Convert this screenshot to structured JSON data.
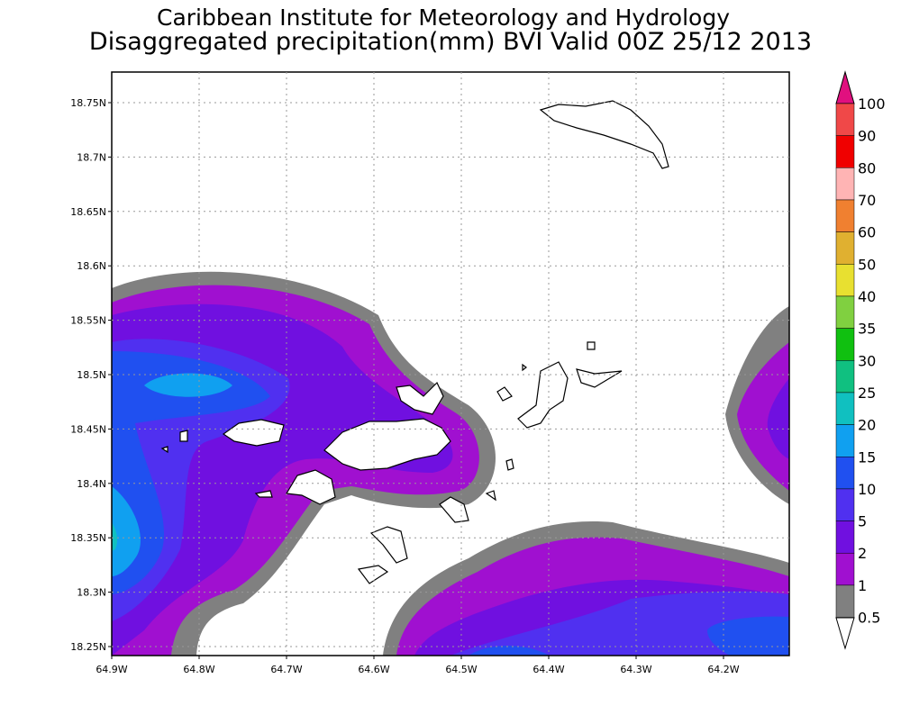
{
  "header": {
    "title": "Caribbean Institute for Meteorology and Hydrology",
    "subtitle": "Disaggregated precipitation(mm) BVI Valid 00Z 25/12 2013"
  },
  "map": {
    "lat_labels": [
      "18.75N",
      "18.7N",
      "18.65N",
      "18.6N",
      "18.55N",
      "18.5N",
      "18.45N",
      "18.4N",
      "18.35N",
      "18.3N",
      "18.25N"
    ],
    "lon_labels": [
      "64.9W",
      "64.8W",
      "64.7W",
      "64.6W",
      "64.5W",
      "64.4W",
      "64.3W",
      "64.2W"
    ]
  },
  "colorbar": {
    "levels": [
      100,
      90,
      80,
      70,
      60,
      50,
      40,
      35,
      30,
      25,
      20,
      15,
      10,
      5,
      2,
      1,
      0.5
    ],
    "top_color": "#e0107f",
    "band_colors": [
      "#f04848",
      "#f00000",
      "#ffb4b4",
      "#f08030",
      "#e0b030",
      "#e8e030",
      "#80d040",
      "#10c010",
      "#10c080",
      "#10c0c0",
      "#10a0f0",
      "#2050f0",
      "#5030f0",
      "#7010e0",
      "#a010d0",
      "#808080"
    ],
    "bottom_color": "#ffffff"
  }
}
